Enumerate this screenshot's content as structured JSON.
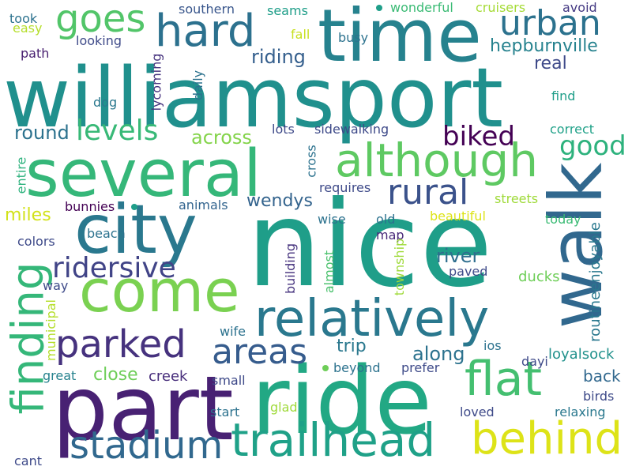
{
  "palette": {
    "purple": "#482173",
    "indigo": "#3e4a89",
    "blue": "#31688e",
    "teal": "#26828e",
    "green_teal": "#1f9e89",
    "green": "#35b779",
    "light_green": "#6ece58",
    "lime": "#b5de2b",
    "yellow": "#e5e419"
  },
  "words": [
    {
      "text": "williamsport",
      "color": "#20908d"
    },
    {
      "text": "nice",
      "color": "#1f9e89"
    },
    {
      "text": "ride",
      "color": "#22a884"
    },
    {
      "text": "part",
      "color": "#482173"
    },
    {
      "text": "several",
      "color": "#35b779"
    },
    {
      "text": "time",
      "color": "#26828e"
    },
    {
      "text": "city",
      "color": "#2a788e"
    },
    {
      "text": "walk",
      "color": "#31688e"
    },
    {
      "text": "come",
      "color": "#7ad151"
    },
    {
      "text": "relatively",
      "color": "#2a788e"
    },
    {
      "text": "although",
      "color": "#5ec962"
    },
    {
      "text": "hard",
      "color": "#2c718e"
    },
    {
      "text": "trailhead",
      "color": "#1fa188"
    },
    {
      "text": "finding",
      "color": "#35b779"
    },
    {
      "text": "flat",
      "color": "#44bf70"
    },
    {
      "text": "stadium",
      "color": "#31688e"
    },
    {
      "text": "parked",
      "color": "#46327e"
    },
    {
      "text": "behind",
      "color": "#dde318"
    },
    {
      "text": "rural",
      "color": "#3b528b"
    },
    {
      "text": "urban",
      "color": "#2c728e"
    },
    {
      "text": "goes",
      "color": "#52c569"
    },
    {
      "text": "areas",
      "color": "#365c8d"
    },
    {
      "text": "ridersive",
      "color": "#414487"
    },
    {
      "text": "levels",
      "color": "#38b977"
    },
    {
      "text": "biked",
      "color": "#440154"
    },
    {
      "text": "good",
      "color": "#2db27d"
    },
    {
      "text": "hepburnville",
      "color": "#26828e"
    },
    {
      "text": "real",
      "color": "#3e4a89"
    },
    {
      "text": "riding",
      "color": "#355f8d"
    },
    {
      "text": "round",
      "color": "#2c728e"
    },
    {
      "text": "across",
      "color": "#84d44b"
    },
    {
      "text": "wendys",
      "color": "#33638d"
    },
    {
      "text": "miles",
      "color": "#d2e21b"
    },
    {
      "text": "river",
      "color": "#2e6e8e"
    },
    {
      "text": "along",
      "color": "#2c728e"
    },
    {
      "text": "trip",
      "color": "#2a788e"
    },
    {
      "text": "close",
      "color": "#6ece58"
    },
    {
      "text": "creek",
      "color": "#472d7b"
    },
    {
      "text": "back",
      "color": "#31688e"
    },
    {
      "text": "ducks",
      "color": "#6ece58"
    },
    {
      "text": "loyalsock",
      "color": "#21918c"
    },
    {
      "text": "routineenjoyable",
      "color": "#2a788e"
    },
    {
      "text": "southern",
      "color": "#39568c"
    },
    {
      "text": "seams",
      "color": "#1f9e89"
    },
    {
      "text": "wonderful",
      "color": "#3bbb75"
    },
    {
      "text": "cruisers",
      "color": "#a5db36"
    },
    {
      "text": "avoid",
      "color": "#443983"
    },
    {
      "text": "took",
      "color": "#2c728e"
    },
    {
      "text": "easy",
      "color": "#b5de2b"
    },
    {
      "text": "looking",
      "color": "#3e4a89"
    },
    {
      "text": "path",
      "color": "#481f70"
    },
    {
      "text": "fall",
      "color": "#c8e020"
    },
    {
      "text": "busy",
      "color": "#2c728e"
    },
    {
      "text": "lycoming",
      "color": "#46337e"
    },
    {
      "text": "daily",
      "color": "#2c728e"
    },
    {
      "text": "dog",
      "color": "#2a788e"
    },
    {
      "text": "find",
      "color": "#1f9e89"
    },
    {
      "text": "lots",
      "color": "#3e4a89"
    },
    {
      "text": "sidewalking",
      "color": "#3e4a89"
    },
    {
      "text": "correct",
      "color": "#1fa188"
    },
    {
      "text": "cross",
      "color": "#2c728e"
    },
    {
      "text": "entire",
      "color": "#2db27d"
    },
    {
      "text": "requires",
      "color": "#3e4a89"
    },
    {
      "text": "streets",
      "color": "#9fda3a"
    },
    {
      "text": "bunnies",
      "color": "#440154"
    },
    {
      "text": "animals",
      "color": "#32648e"
    },
    {
      "text": "wise",
      "color": "#2c728e"
    },
    {
      "text": "old",
      "color": "#2c728e"
    },
    {
      "text": "beautiful",
      "color": "#dde318"
    },
    {
      "text": "today",
      "color": "#3bbb75"
    },
    {
      "text": "colors",
      "color": "#3e4a89"
    },
    {
      "text": "beach",
      "color": "#2c728e"
    },
    {
      "text": "map",
      "color": "#482878"
    },
    {
      "text": "building",
      "color": "#46337e"
    },
    {
      "text": "township",
      "color": "#9fda3a"
    },
    {
      "text": "almost",
      "color": "#4ac16d"
    },
    {
      "text": "paved",
      "color": "#3e4a89"
    },
    {
      "text": "way",
      "color": "#3e4a89"
    },
    {
      "text": "municipal",
      "color": "#b5de2b"
    },
    {
      "text": "wife",
      "color": "#2c728e"
    },
    {
      "text": "ios",
      "color": "#2c728e"
    },
    {
      "text": "dayi",
      "color": "#3e4a89"
    },
    {
      "text": "great",
      "color": "#26828e"
    },
    {
      "text": "small",
      "color": "#3e4a89"
    },
    {
      "text": "beyond",
      "color": "#2c728e"
    },
    {
      "text": "prefer",
      "color": "#3e4a89"
    },
    {
      "text": "birds",
      "color": "#3e4a89"
    },
    {
      "text": "glad",
      "color": "#9fda3a"
    },
    {
      "text": "start",
      "color": "#2c728e"
    },
    {
      "text": "loved",
      "color": "#3e4a89"
    },
    {
      "text": "relaxing",
      "color": "#2a788e"
    },
    {
      "text": "cant",
      "color": "#3e4a89"
    }
  ]
}
